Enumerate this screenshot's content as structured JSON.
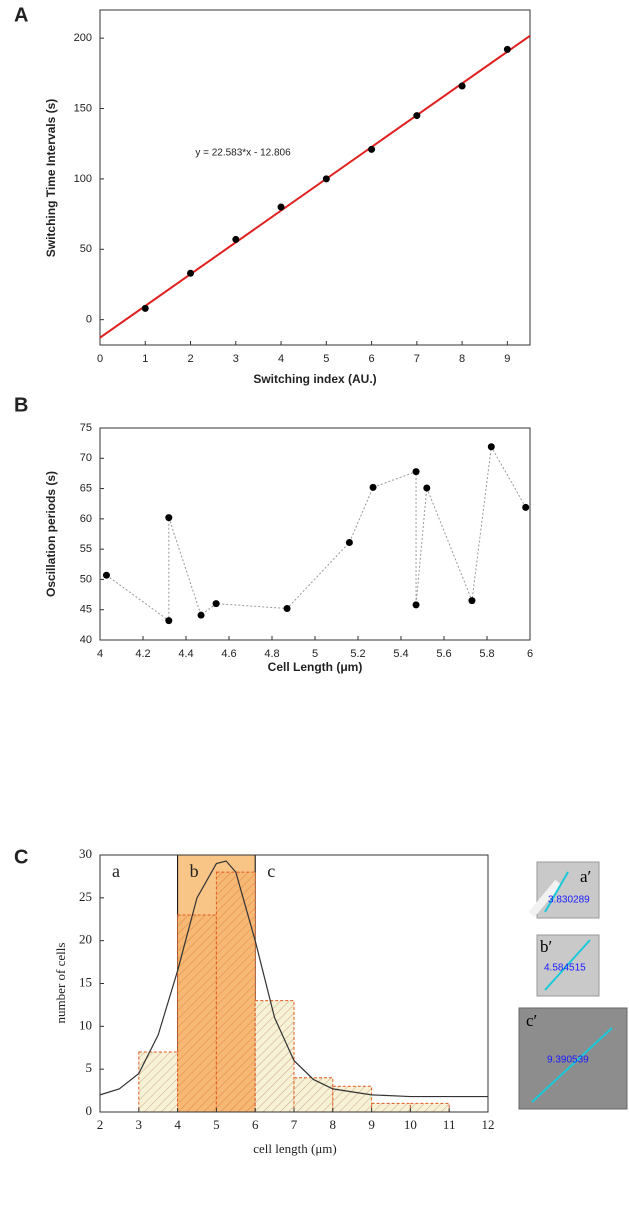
{
  "chart_data": [
    {
      "type": "scatter",
      "panel_label": "A",
      "x_label": "Switching index (AU.)",
      "y_label": "Switching Time Intervals (s)",
      "annotation": "y = 22.583*x - 12.806",
      "series": [
        {
          "color": "#000000",
          "x": [
            1,
            2,
            3,
            4,
            5,
            6,
            7,
            8,
            9
          ],
          "values": [
            8,
            33,
            57,
            80,
            100,
            121,
            145,
            166,
            192
          ]
        }
      ],
      "fit_line": {
        "color": "#e02020",
        "x": [
          0,
          9.5
        ],
        "values": [
          -12.8,
          201.7
        ]
      },
      "xlim": [
        0,
        9.5
      ],
      "xticks": [
        0,
        1,
        2,
        3,
        4,
        5,
        6,
        7,
        8,
        9
      ],
      "ylim": [
        -18,
        220
      ],
      "yticks": [
        0,
        50,
        100,
        150,
        200
      ]
    },
    {
      "type": "line",
      "panel_label": "B",
      "x_label": "Cell Length (μm)",
      "y_label": "Oscillation periods (s)",
      "series": [
        {
          "color": "#000000",
          "x": [
            4.03,
            4.32,
            4.32,
            4.47,
            4.54,
            4.87,
            5.16,
            5.27,
            5.47,
            5.47,
            5.52,
            5.73,
            5.82,
            5.98
          ],
          "values": [
            50.7,
            43.2,
            60.2,
            44.1,
            46,
            45.2,
            56.1,
            65.2,
            67.8,
            45.8,
            65.1,
            46.5,
            71.9,
            61.9
          ]
        }
      ],
      "xlim": [
        4,
        6
      ],
      "xticks": [
        4,
        4.2,
        4.4,
        4.6,
        4.8,
        5,
        5.2,
        5.4,
        5.6,
        5.8,
        6
      ],
      "ylim": [
        40,
        75
      ],
      "yticks": [
        40,
        45,
        50,
        55,
        60,
        65,
        70,
        75
      ]
    },
    {
      "type": "histogram",
      "panel_label": "C",
      "x_label": "cell length (μm)",
      "y_label": "number of cells",
      "region_labels": [
        "a",
        "b",
        "c"
      ],
      "bins": [
        3,
        4,
        5,
        6,
        7,
        8,
        9,
        10,
        11
      ],
      "values": [
        7,
        23,
        28,
        13,
        4,
        3,
        1,
        1
      ],
      "color": "#e05a20",
      "highlight": [
        4,
        6
      ],
      "highlight_color": "#f9c587",
      "fit_curve": {
        "color": "#333333",
        "x": [
          2,
          2.5,
          3,
          3.5,
          4,
          4.5,
          5,
          5.25,
          5.5,
          6,
          6.5,
          7,
          7.5,
          8,
          9,
          10,
          11,
          12
        ],
        "values": [
          2,
          2.7,
          4.5,
          9,
          16.5,
          25,
          29,
          29.3,
          28,
          20,
          11,
          6,
          3.8,
          2.7,
          2,
          1.8,
          1.8,
          1.8
        ]
      },
      "xlim": [
        2,
        12
      ],
      "xticks": [
        2,
        3,
        4,
        5,
        6,
        7,
        8,
        9,
        10,
        11,
        12
      ],
      "ylim": [
        0,
        30
      ],
      "yticks": [
        0,
        5,
        10,
        15,
        20,
        25,
        30
      ]
    }
  ],
  "insets": [
    {
      "label": "a′",
      "measurement": "3.830289"
    },
    {
      "label": "b′",
      "measurement": "4.584515"
    },
    {
      "label": "c′",
      "measurement": "9.390539"
    }
  ]
}
